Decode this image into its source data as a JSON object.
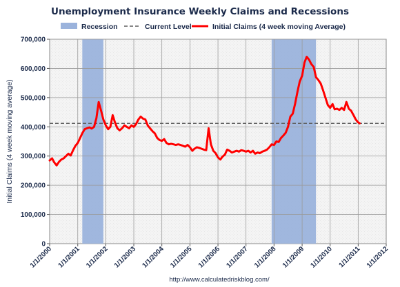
{
  "chart_data": {
    "type": "line",
    "title": "Unemployment Insurance Weekly Claims and Recessions",
    "ylabel": "Initial Claims (4 week moving average)",
    "xlabel": "",
    "source": "http://www.calculatedriskblog.com/",
    "ylim": [
      0,
      700000
    ],
    "xlim": [
      "2000-01-01",
      "2012-01-01"
    ],
    "y_ticks": [
      0,
      100000,
      200000,
      300000,
      400000,
      500000,
      600000,
      700000
    ],
    "y_tick_labels": [
      "0",
      "100,000",
      "200,000",
      "300,000",
      "400,000",
      "500,000",
      "600,000",
      "700,000"
    ],
    "x_ticks": [
      "2000-01-01",
      "2001-01-01",
      "2002-01-01",
      "2003-01-01",
      "2004-01-01",
      "2005-01-01",
      "2006-01-01",
      "2007-01-01",
      "2008-01-01",
      "2009-01-01",
      "2010-01-01",
      "2011-01-01",
      "2012-01-01"
    ],
    "x_tick_labels": [
      "1/1/2000",
      "1/1/2001",
      "1/1/2002",
      "1/1/2003",
      "1/1/2004",
      "1/1/2005",
      "1/1/2006",
      "1/1/2007",
      "1/1/2008",
      "1/1/2009",
      "1/1/2010",
      "1/1/2011",
      "1/1/2012"
    ],
    "grid": true,
    "legend_position": "top",
    "legend": [
      {
        "name": "Recession",
        "kind": "band",
        "color": "#9bb3dc"
      },
      {
        "name": "Current Level",
        "kind": "dashed",
        "color": "#606060"
      },
      {
        "name": "Initial Claims (4 week moving Average)",
        "kind": "line",
        "color": "#ff0000"
      }
    ],
    "recessions": [
      {
        "start": "2001-03-01",
        "end": "2001-11-30"
      },
      {
        "start": "2007-12-01",
        "end": "2009-06-30"
      }
    ],
    "current_level": 412000,
    "series": [
      {
        "name": "Initial Claims (4 week moving Average)",
        "color": "#ff0000",
        "points": [
          [
            "2000-01-01",
            285000
          ],
          [
            "2000-02-01",
            292000
          ],
          [
            "2000-03-01",
            278000
          ],
          [
            "2000-04-01",
            268000
          ],
          [
            "2000-05-01",
            280000
          ],
          [
            "2000-06-01",
            288000
          ],
          [
            "2000-07-01",
            292000
          ],
          [
            "2000-08-01",
            300000
          ],
          [
            "2000-09-01",
            308000
          ],
          [
            "2000-10-01",
            302000
          ],
          [
            "2000-11-01",
            320000
          ],
          [
            "2000-12-01",
            335000
          ],
          [
            "2001-01-01",
            345000
          ],
          [
            "2001-02-01",
            362000
          ],
          [
            "2001-03-01",
            378000
          ],
          [
            "2001-04-01",
            392000
          ],
          [
            "2001-05-01",
            395000
          ],
          [
            "2001-06-01",
            398000
          ],
          [
            "2001-07-01",
            394000
          ],
          [
            "2001-08-01",
            400000
          ],
          [
            "2001-09-01",
            430000
          ],
          [
            "2001-10-01",
            485000
          ],
          [
            "2001-11-01",
            455000
          ],
          [
            "2001-12-01",
            425000
          ],
          [
            "2002-01-01",
            405000
          ],
          [
            "2002-02-01",
            392000
          ],
          [
            "2002-03-01",
            400000
          ],
          [
            "2002-04-01",
            440000
          ],
          [
            "2002-05-01",
            415000
          ],
          [
            "2002-06-01",
            395000
          ],
          [
            "2002-07-01",
            388000
          ],
          [
            "2002-08-01",
            395000
          ],
          [
            "2002-09-01",
            405000
          ],
          [
            "2002-10-01",
            400000
          ],
          [
            "2002-11-01",
            395000
          ],
          [
            "2002-12-01",
            405000
          ],
          [
            "2003-01-01",
            400000
          ],
          [
            "2003-02-01",
            410000
          ],
          [
            "2003-03-01",
            425000
          ],
          [
            "2003-04-01",
            435000
          ],
          [
            "2003-05-01",
            428000
          ],
          [
            "2003-06-01",
            425000
          ],
          [
            "2003-07-01",
            405000
          ],
          [
            "2003-08-01",
            395000
          ],
          [
            "2003-09-01",
            385000
          ],
          [
            "2003-10-01",
            378000
          ],
          [
            "2003-11-01",
            362000
          ],
          [
            "2003-12-01",
            355000
          ],
          [
            "2004-01-01",
            352000
          ],
          [
            "2004-02-01",
            358000
          ],
          [
            "2004-03-01",
            345000
          ],
          [
            "2004-04-01",
            340000
          ],
          [
            "2004-05-01",
            342000
          ],
          [
            "2004-06-01",
            340000
          ],
          [
            "2004-07-01",
            338000
          ],
          [
            "2004-08-01",
            340000
          ],
          [
            "2004-09-01",
            338000
          ],
          [
            "2004-10-01",
            335000
          ],
          [
            "2004-11-01",
            332000
          ],
          [
            "2004-12-01",
            338000
          ],
          [
            "2005-01-01",
            330000
          ],
          [
            "2005-02-01",
            318000
          ],
          [
            "2005-03-01",
            325000
          ],
          [
            "2005-04-01",
            330000
          ],
          [
            "2005-05-01",
            328000
          ],
          [
            "2005-06-01",
            325000
          ],
          [
            "2005-07-01",
            322000
          ],
          [
            "2005-08-01",
            320000
          ],
          [
            "2005-09-01",
            395000
          ],
          [
            "2005-10-01",
            340000
          ],
          [
            "2005-11-01",
            318000
          ],
          [
            "2005-12-01",
            310000
          ],
          [
            "2006-01-01",
            295000
          ],
          [
            "2006-02-01",
            288000
          ],
          [
            "2006-03-01",
            298000
          ],
          [
            "2006-04-01",
            305000
          ],
          [
            "2006-05-01",
            322000
          ],
          [
            "2006-06-01",
            318000
          ],
          [
            "2006-07-01",
            312000
          ],
          [
            "2006-08-01",
            315000
          ],
          [
            "2006-09-01",
            318000
          ],
          [
            "2006-10-01",
            315000
          ],
          [
            "2006-11-01",
            320000
          ],
          [
            "2006-12-01",
            318000
          ],
          [
            "2007-01-01",
            315000
          ],
          [
            "2007-02-01",
            318000
          ],
          [
            "2007-03-01",
            312000
          ],
          [
            "2007-04-01",
            318000
          ],
          [
            "2007-05-01",
            308000
          ],
          [
            "2007-06-01",
            312000
          ],
          [
            "2007-07-01",
            310000
          ],
          [
            "2007-08-01",
            315000
          ],
          [
            "2007-09-01",
            318000
          ],
          [
            "2007-10-01",
            322000
          ],
          [
            "2007-11-01",
            330000
          ],
          [
            "2007-12-01",
            340000
          ],
          [
            "2008-01-01",
            338000
          ],
          [
            "2008-02-01",
            350000
          ],
          [
            "2008-03-01",
            348000
          ],
          [
            "2008-04-01",
            362000
          ],
          [
            "2008-05-01",
            370000
          ],
          [
            "2008-06-01",
            380000
          ],
          [
            "2008-07-01",
            400000
          ],
          [
            "2008-08-01",
            435000
          ],
          [
            "2008-09-01",
            445000
          ],
          [
            "2008-10-01",
            478000
          ],
          [
            "2008-11-01",
            520000
          ],
          [
            "2008-12-01",
            555000
          ],
          [
            "2009-01-01",
            575000
          ],
          [
            "2009-02-01",
            620000
          ],
          [
            "2009-03-01",
            640000
          ],
          [
            "2009-04-01",
            630000
          ],
          [
            "2009-05-01",
            615000
          ],
          [
            "2009-06-01",
            605000
          ],
          [
            "2009-07-01",
            570000
          ],
          [
            "2009-08-01",
            560000
          ],
          [
            "2009-09-01",
            548000
          ],
          [
            "2009-10-01",
            525000
          ],
          [
            "2009-11-01",
            500000
          ],
          [
            "2009-12-01",
            475000
          ],
          [
            "2010-01-01",
            465000
          ],
          [
            "2010-02-01",
            478000
          ],
          [
            "2010-03-01",
            460000
          ],
          [
            "2010-04-01",
            462000
          ],
          [
            "2010-05-01",
            458000
          ],
          [
            "2010-06-01",
            465000
          ],
          [
            "2010-07-01",
            458000
          ],
          [
            "2010-08-01",
            485000
          ],
          [
            "2010-09-01",
            462000
          ],
          [
            "2010-10-01",
            455000
          ],
          [
            "2010-11-01",
            440000
          ],
          [
            "2010-12-01",
            425000
          ],
          [
            "2011-01-01",
            415000
          ],
          [
            "2011-01-20",
            412000
          ]
        ]
      }
    ]
  }
}
